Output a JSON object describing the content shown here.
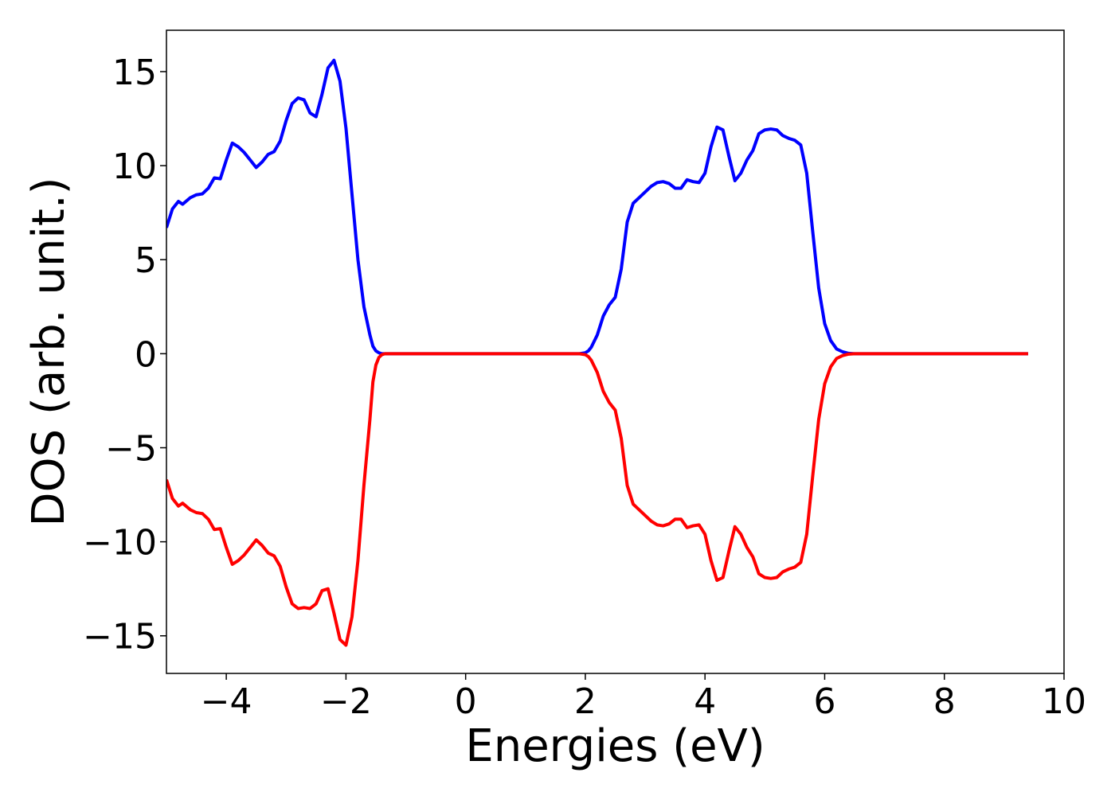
{
  "chart_data": {
    "type": "line",
    "title": "",
    "xlabel": "Energies (eV)",
    "ylabel": "DOS (arb. unit.)",
    "xlim": [
      -5,
      10
    ],
    "ylim": [
      -17,
      17.2
    ],
    "xticks": [
      -4,
      -2,
      0,
      2,
      4,
      6,
      8,
      10
    ],
    "xtick_labels": [
      "−4",
      "−2",
      "0",
      "2",
      "4",
      "6",
      "8",
      "10"
    ],
    "yticks": [
      -15,
      -10,
      -5,
      0,
      5,
      10,
      15
    ],
    "ytick_labels": [
      "−15",
      "−10",
      "−5",
      "0",
      "5",
      "10",
      "15"
    ],
    "grid": false,
    "series": [
      {
        "color": "#0000ff",
        "x": [
          -5.0,
          -4.9,
          -4.8,
          -4.73,
          -4.6,
          -4.5,
          -4.4,
          -4.3,
          -4.2,
          -4.1,
          -4.0,
          -3.9,
          -3.8,
          -3.7,
          -3.6,
          -3.5,
          -3.4,
          -3.3,
          -3.2,
          -3.1,
          -3.0,
          -2.9,
          -2.8,
          -2.7,
          -2.6,
          -2.5,
          -2.4,
          -2.3,
          -2.2,
          -2.1,
          -2.0,
          -1.9,
          -1.8,
          -1.7,
          -1.6,
          -1.55,
          -1.5,
          -1.45,
          -1.4,
          -1.35,
          -1.3,
          -1.25,
          -1.2,
          -1.15,
          -1.1,
          -1.05,
          -1.0,
          -0.95,
          -0.9,
          -0.85,
          -0.8,
          -0.75,
          -0.7,
          -0.65,
          -0.6,
          -0.5,
          0.0,
          1.0,
          1.9,
          2.0,
          2.05,
          2.1,
          2.2,
          2.3,
          2.4,
          2.5,
          2.6,
          2.7,
          2.8,
          2.9,
          3.0,
          3.1,
          3.2,
          3.3,
          3.4,
          3.5,
          3.6,
          3.7,
          3.8,
          3.9,
          4.0,
          4.1,
          4.2,
          4.3,
          4.4,
          4.5,
          4.6,
          4.7,
          4.8,
          4.9,
          5.0,
          5.1,
          5.2,
          5.3,
          5.4,
          5.5,
          5.6,
          5.7,
          5.8,
          5.9,
          6.0,
          6.1,
          6.2,
          6.3,
          6.4,
          6.5,
          6.6,
          6.7,
          6.8,
          6.9,
          7.0,
          7.1,
          7.2,
          7.3,
          7.4,
          7.5,
          7.6,
          7.7,
          8.0,
          9.0,
          9.4
        ],
        "values": [
          6.7,
          7.7,
          8.1,
          7.95,
          8.3,
          8.45,
          8.5,
          8.8,
          9.35,
          9.3,
          10.3,
          11.2,
          11.0,
          10.7,
          10.3,
          9.9,
          10.2,
          10.6,
          10.75,
          11.3,
          12.4,
          13.3,
          13.6,
          13.5,
          12.8,
          12.6,
          13.8,
          15.2,
          15.6,
          14.5,
          12.0,
          8.5,
          5.0,
          2.5,
          1.0,
          0.4,
          0.15,
          0.05,
          0.0,
          0.0,
          0.0,
          0.0,
          0.0,
          0.0,
          0.0,
          0.0,
          0.0,
          0.0,
          0.0,
          0.0,
          0.0,
          0.0,
          0.0,
          0.0,
          0.0,
          0.0,
          0.0,
          0.0,
          0.0,
          0.05,
          0.15,
          0.35,
          1.0,
          2.0,
          2.6,
          3.0,
          4.5,
          7.0,
          8.0,
          8.3,
          8.6,
          8.9,
          9.1,
          9.15,
          9.05,
          8.8,
          8.8,
          9.25,
          9.15,
          9.1,
          9.6,
          11.0,
          12.05,
          11.9,
          10.5,
          9.2,
          9.6,
          10.3,
          10.8,
          11.7,
          11.9,
          11.95,
          11.9,
          11.6,
          11.45,
          11.35,
          11.1,
          9.6,
          6.5,
          3.5,
          1.6,
          0.7,
          0.25,
          0.1,
          0.02,
          0.0,
          0.0,
          0.0,
          0.0,
          0.0,
          0.0,
          0.0,
          0.0,
          0.0,
          0.0,
          0.0,
          0.0,
          0.0,
          0.0,
          0.0,
          0.0
        ]
      },
      {
        "color": "#ff0000",
        "x": [
          -5.0,
          -4.9,
          -4.8,
          -4.73,
          -4.6,
          -4.5,
          -4.4,
          -4.3,
          -4.2,
          -4.1,
          -4.0,
          -3.9,
          -3.8,
          -3.7,
          -3.6,
          -3.5,
          -3.4,
          -3.3,
          -3.2,
          -3.1,
          -3.0,
          -2.9,
          -2.8,
          -2.7,
          -2.6,
          -2.5,
          -2.4,
          -2.3,
          -2.2,
          -2.1,
          -2.0,
          -1.9,
          -1.8,
          -1.7,
          -1.6,
          -1.55,
          -1.5,
          -1.45,
          -1.4,
          -1.35,
          -1.3,
          -1.25,
          -1.2,
          -1.15,
          -1.1,
          -1.05,
          -1.0,
          -0.95,
          -0.9,
          -0.85,
          -0.8,
          -0.75,
          -0.7,
          -0.65,
          -0.6,
          -0.5,
          0.0,
          1.0,
          1.9,
          2.0,
          2.05,
          2.1,
          2.2,
          2.3,
          2.4,
          2.5,
          2.6,
          2.7,
          2.8,
          2.9,
          3.0,
          3.1,
          3.2,
          3.3,
          3.4,
          3.5,
          3.6,
          3.7,
          3.8,
          3.9,
          4.0,
          4.1,
          4.2,
          4.3,
          4.4,
          4.5,
          4.6,
          4.7,
          4.8,
          4.9,
          5.0,
          5.1,
          5.2,
          5.3,
          5.4,
          5.5,
          5.6,
          5.7,
          5.8,
          5.9,
          6.0,
          6.1,
          6.2,
          6.3,
          6.4,
          6.5,
          6.6,
          6.7,
          6.8,
          6.9,
          7.0,
          7.1,
          7.2,
          7.3,
          7.4,
          7.5,
          7.6,
          7.7,
          8.0,
          9.0,
          9.4
        ],
        "values": [
          -6.7,
          -7.7,
          -8.1,
          -7.95,
          -8.3,
          -8.45,
          -8.5,
          -8.8,
          -9.35,
          -9.3,
          -10.3,
          -11.2,
          -11.0,
          -10.7,
          -10.3,
          -9.9,
          -10.2,
          -10.6,
          -10.75,
          -11.3,
          -12.4,
          -13.3,
          -13.55,
          -13.5,
          -13.55,
          -13.3,
          -12.6,
          -12.5,
          -13.8,
          -15.2,
          -15.5,
          -14.0,
          -11.0,
          -7.0,
          -3.5,
          -1.5,
          -0.6,
          -0.2,
          -0.05,
          -0.0,
          -0.0,
          -0.0,
          -0.0,
          -0.0,
          -0.0,
          -0.0,
          -0.0,
          -0.0,
          -0.0,
          -0.0,
          -0.0,
          -0.0,
          -0.0,
          -0.0,
          -0.0,
          -0.0,
          -0.0,
          -0.0,
          -0.0,
          -0.05,
          -0.15,
          -0.35,
          -1.0,
          -2.0,
          -2.6,
          -3.0,
          -4.5,
          -7.0,
          -8.0,
          -8.3,
          -8.6,
          -8.9,
          -9.1,
          -9.15,
          -9.05,
          -8.8,
          -8.8,
          -9.25,
          -9.15,
          -9.1,
          -9.6,
          -11.0,
          -12.05,
          -11.9,
          -10.5,
          -9.2,
          -9.6,
          -10.3,
          -10.8,
          -11.7,
          -11.9,
          -11.95,
          -11.9,
          -11.6,
          -11.45,
          -11.35,
          -11.1,
          -9.6,
          -6.5,
          -3.5,
          -1.6,
          -0.7,
          -0.25,
          -0.1,
          -0.02,
          -0.0,
          -0.0,
          -0.0,
          -0.0,
          -0.0,
          -0.0,
          -0.0,
          -0.0,
          -0.0,
          -0.0,
          -0.0,
          -0.0,
          -0.0,
          -0.0,
          -0.0,
          -0.0
        ]
      }
    ]
  }
}
